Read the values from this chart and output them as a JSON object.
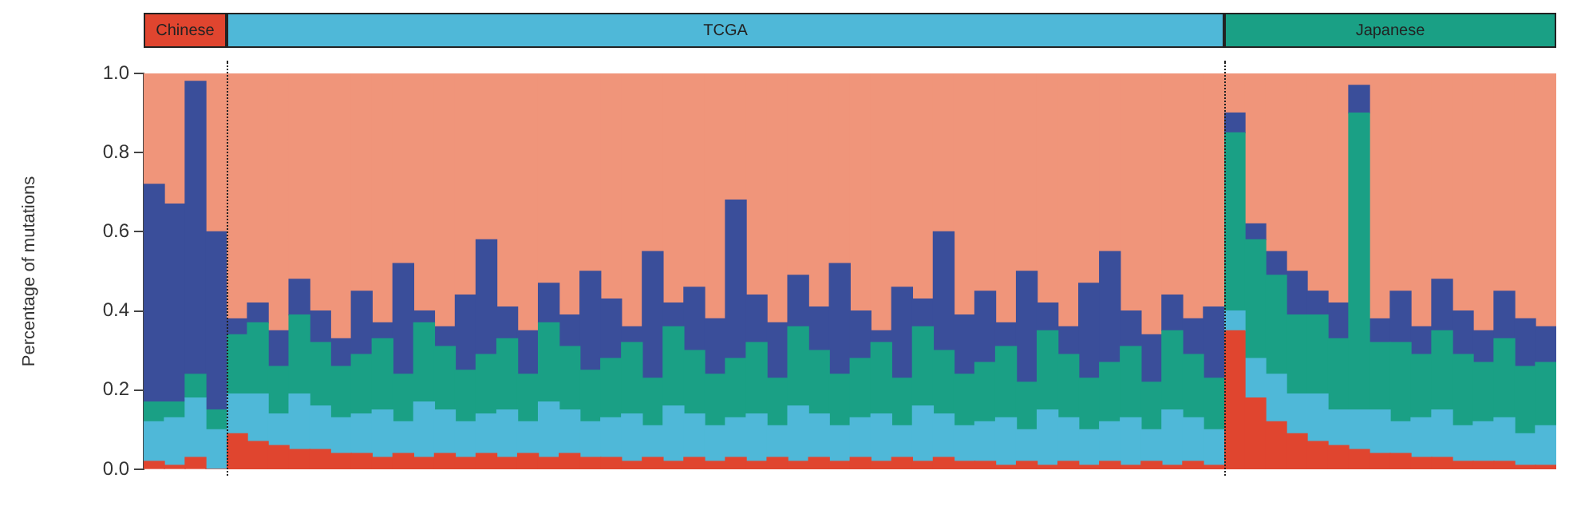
{
  "chart_data": [
    {
      "type": "bar",
      "title": "Chinese",
      "ylabel": "Percentage of mutations",
      "stacked": true,
      "ylim": [
        0,
        1
      ],
      "yticks": [
        {
          "value": 0,
          "label": "0.0"
        },
        0.2,
        0.4,
        0.6,
        0.8,
        {
          "value": 1,
          "label": "1.0"
        }
      ],
      "tick_labels": "y",
      "categories": [
        null,
        null,
        null,
        null
      ],
      "series": [
        {
          "color": "#e0452f",
          "values": [
            0.02,
            0.01,
            0.03,
            0.0
          ]
        },
        {
          "color": "#4fb8d8",
          "values": [
            0.1,
            0.12,
            0.15,
            0.1
          ]
        },
        {
          "color": "#1aa085",
          "values": [
            0.05,
            0.04,
            0.06,
            0.05
          ]
        },
        {
          "color": "#3a4e9a",
          "values": [
            0.55,
            0.5,
            0.74,
            0.45
          ]
        },
        {
          "color": "#f0957a",
          "values": [
            0.28,
            0.33,
            0.02,
            0.4
          ]
        }
      ]
    },
    {
      "type": "bar",
      "title": "TCGA",
      "stacked": true,
      "ylim": [
        0,
        1
      ],
      "yticks": [
        0,
        0.2,
        0.4,
        0.6,
        0.8,
        1
      ],
      "tick_labels": false,
      "categories": [
        null,
        null,
        null,
        null,
        null,
        null,
        null,
        null,
        null,
        null,
        null,
        null,
        null,
        null,
        null,
        null,
        null,
        null,
        null,
        null,
        null,
        null,
        null,
        null,
        null,
        null,
        null,
        null,
        null,
        null,
        null,
        null,
        null,
        null,
        null,
        null,
        null,
        null,
        null,
        null,
        null,
        null,
        null,
        null,
        null,
        null,
        null,
        null
      ],
      "series": [
        {
          "color": "#e0452f",
          "values": [
            0.09,
            0.07,
            0.06,
            0.05,
            0.05,
            0.04,
            0.04,
            0.03,
            0.04,
            0.03,
            0.04,
            0.03,
            0.04,
            0.03,
            0.04,
            0.03,
            0.04,
            0.03,
            0.03,
            0.02,
            0.03,
            0.02,
            0.03,
            0.02,
            0.03,
            0.02,
            0.03,
            0.02,
            0.03,
            0.02,
            0.03,
            0.02,
            0.03,
            0.02,
            0.03,
            0.02,
            0.02,
            0.01,
            0.02,
            0.01,
            0.02,
            0.01,
            0.02,
            0.01,
            0.02,
            0.01,
            0.02,
            0.01
          ]
        },
        {
          "color": "#4fb8d8",
          "values": [
            0.1,
            0.12,
            0.08,
            0.14,
            0.11,
            0.09,
            0.1,
            0.12,
            0.08,
            0.14,
            0.11,
            0.09,
            0.1,
            0.12,
            0.08,
            0.14,
            0.11,
            0.09,
            0.1,
            0.12,
            0.08,
            0.14,
            0.11,
            0.09,
            0.1,
            0.12,
            0.08,
            0.14,
            0.11,
            0.09,
            0.1,
            0.12,
            0.08,
            0.14,
            0.11,
            0.09,
            0.1,
            0.12,
            0.08,
            0.14,
            0.11,
            0.09,
            0.1,
            0.12,
            0.08,
            0.14,
            0.11,
            0.09
          ]
        },
        {
          "color": "#1aa085",
          "values": [
            0.15,
            0.18,
            0.12,
            0.2,
            0.16,
            0.13,
            0.15,
            0.18,
            0.12,
            0.2,
            0.16,
            0.13,
            0.15,
            0.18,
            0.12,
            0.2,
            0.16,
            0.13,
            0.15,
            0.18,
            0.12,
            0.2,
            0.16,
            0.13,
            0.15,
            0.18,
            0.12,
            0.2,
            0.16,
            0.13,
            0.15,
            0.18,
            0.12,
            0.2,
            0.16,
            0.13,
            0.15,
            0.18,
            0.12,
            0.2,
            0.16,
            0.13,
            0.15,
            0.18,
            0.12,
            0.2,
            0.16,
            0.13
          ]
        },
        {
          "color": "#3a4e9a",
          "values": [
            0.04,
            0.05,
            0.09,
            0.09,
            0.08,
            0.07,
            0.16,
            0.04,
            0.28,
            0.03,
            0.05,
            0.19,
            0.29,
            0.08,
            0.11,
            0.1,
            0.08,
            0.25,
            0.15,
            0.04,
            0.32,
            0.06,
            0.16,
            0.14,
            0.4,
            0.12,
            0.14,
            0.13,
            0.11,
            0.28,
            0.12,
            0.03,
            0.23,
            0.07,
            0.3,
            0.15,
            0.18,
            0.06,
            0.28,
            0.07,
            0.07,
            0.24,
            0.28,
            0.09,
            0.12,
            0.09,
            0.09,
            0.18
          ]
        },
        {
          "color": "#f0957a",
          "values": [
            0.62,
            0.58,
            0.65,
            0.52,
            0.6,
            0.67,
            0.55,
            0.63,
            0.48,
            0.6,
            0.64,
            0.56,
            0.42,
            0.59,
            0.65,
            0.53,
            0.61,
            0.5,
            0.57,
            0.64,
            0.45,
            0.58,
            0.54,
            0.62,
            0.32,
            0.56,
            0.63,
            0.51,
            0.59,
            0.48,
            0.6,
            0.65,
            0.54,
            0.57,
            0.4,
            0.61,
            0.55,
            0.63,
            0.5,
            0.58,
            0.64,
            0.53,
            0.45,
            0.6,
            0.66,
            0.56,
            0.62,
            0.59
          ]
        }
      ]
    },
    {
      "type": "bar",
      "title": "Japanese",
      "stacked": true,
      "ylim": [
        0,
        1
      ],
      "yticks": [
        0,
        0.2,
        0.4,
        0.6,
        0.8,
        1
      ],
      "tick_labels": false,
      "categories": [
        null,
        null,
        null,
        null,
        null,
        null,
        null,
        null,
        null,
        null,
        null,
        null,
        null,
        null,
        null,
        null
      ],
      "series": [
        {
          "color": "#e0452f",
          "values": [
            0.35,
            0.18,
            0.12,
            0.09,
            0.07,
            0.06,
            0.05,
            0.04,
            0.04,
            0.03,
            0.03,
            0.02,
            0.02,
            0.02,
            0.01,
            0.01
          ]
        },
        {
          "color": "#4fb8d8",
          "values": [
            0.05,
            0.1,
            0.12,
            0.1,
            0.12,
            0.09,
            0.1,
            0.11,
            0.08,
            0.1,
            0.12,
            0.09,
            0.1,
            0.11,
            0.08,
            0.1
          ]
        },
        {
          "color": "#1aa085",
          "values": [
            0.45,
            0.3,
            0.25,
            0.2,
            0.2,
            0.18,
            0.75,
            0.17,
            0.2,
            0.16,
            0.2,
            0.18,
            0.15,
            0.2,
            0.17,
            0.16
          ]
        },
        {
          "color": "#3a4e9a",
          "values": [
            0.05,
            0.04,
            0.06,
            0.11,
            0.06,
            0.09,
            0.07,
            0.06,
            0.13,
            0.07,
            0.13,
            0.11,
            0.08,
            0.12,
            0.12,
            0.09
          ]
        },
        {
          "color": "#f0957a",
          "values": [
            0.1,
            0.38,
            0.45,
            0.5,
            0.55,
            0.58,
            0.03,
            0.62,
            0.55,
            0.64,
            0.52,
            0.6,
            0.65,
            0.55,
            0.62,
            0.64
          ]
        }
      ]
    }
  ]
}
